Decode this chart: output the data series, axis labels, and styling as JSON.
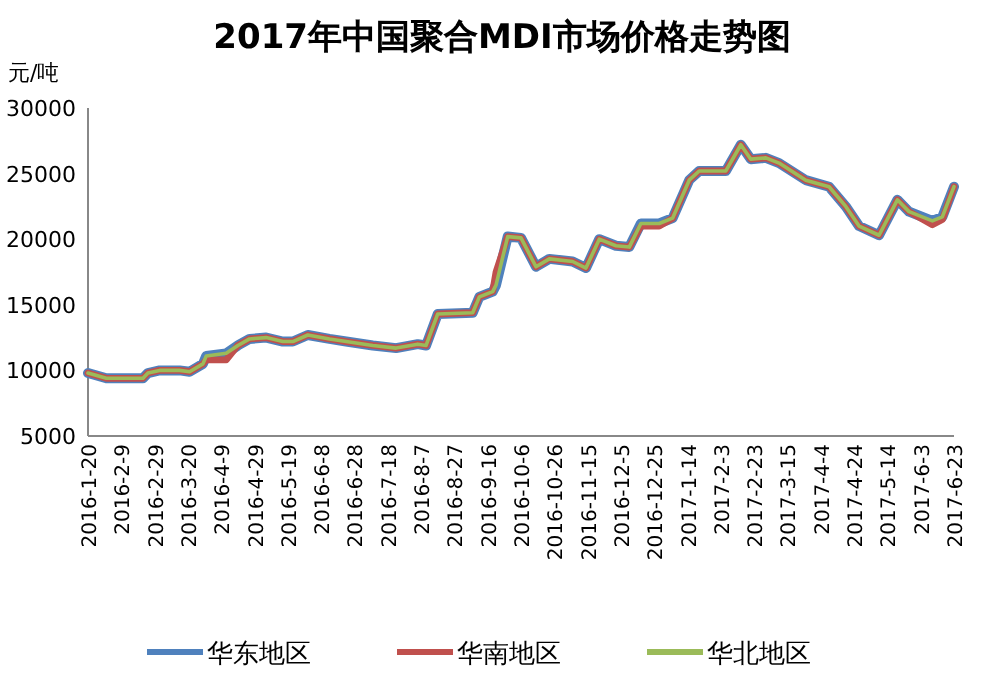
{
  "chart_data": {
    "type": "line",
    "title": "2017年中国聚合MDI市场价格走势图",
    "ylabel": "元/吨",
    "x": [
      "2016-01-20",
      "2016-01-31",
      "2016-02-22",
      "2016-02-25",
      "2016-03-03",
      "2016-03-15",
      "2016-03-21",
      "2016-03-29",
      "2016-03-31",
      "2016-04-12",
      "2016-04-19",
      "2016-04-26",
      "2016-05-06",
      "2016-05-16",
      "2016-05-22",
      "2016-05-31",
      "2016-06-13",
      "2016-06-23",
      "2016-07-09",
      "2016-07-23",
      "2016-08-05",
      "2016-08-10",
      "2016-08-17",
      "2016-09-07",
      "2016-09-11",
      "2016-09-19",
      "2016-09-21",
      "2016-09-28",
      "2016-10-06",
      "2016-10-15",
      "2016-10-23",
      "2016-11-06",
      "2016-11-14",
      "2016-11-22",
      "2016-12-02",
      "2016-12-10",
      "2016-12-17",
      "2016-12-28",
      "2017-01-05",
      "2017-01-15",
      "2017-01-21",
      "2017-02-06",
      "2017-02-15",
      "2017-02-21",
      "2017-03-02",
      "2017-03-10",
      "2017-03-26",
      "2017-04-09",
      "2017-04-19",
      "2017-04-27",
      "2017-05-09",
      "2017-05-20",
      "2017-05-27",
      "2017-06-10",
      "2017-06-16",
      "2017-06-23"
    ],
    "series": [
      {
        "name": "华东地区",
        "color": "#4f81bd",
        "values": [
          9800,
          9400,
          9400,
          9800,
          10000,
          10000,
          9900,
          10500,
          11100,
          11300,
          11900,
          12400,
          12500,
          12200,
          12200,
          12700,
          12400,
          12200,
          11900,
          11700,
          12000,
          11900,
          14300,
          14400,
          15600,
          16000,
          16500,
          20200,
          20100,
          17900,
          18500,
          18300,
          17800,
          20000,
          19500,
          19400,
          21200,
          21200,
          21600,
          24500,
          25200,
          25200,
          27200,
          26100,
          26200,
          25800,
          24500,
          24000,
          22500,
          21000,
          20300,
          23000,
          22100,
          21400,
          21700,
          24000
        ]
      },
      {
        "name": "华南地区",
        "color": "#c0504d",
        "values": [
          9800,
          9400,
          9400,
          9800,
          10000,
          10000,
          9900,
          10500,
          10800,
          10800,
          11900,
          12400,
          12500,
          12200,
          12200,
          12700,
          12400,
          12200,
          11900,
          11700,
          12000,
          11900,
          14300,
          14400,
          15600,
          16000,
          17500,
          20200,
          20100,
          17900,
          18500,
          18300,
          17800,
          20000,
          19500,
          19400,
          21000,
          21000,
          21600,
          24500,
          25200,
          25200,
          27200,
          26100,
          26200,
          25800,
          24500,
          24000,
          22500,
          21000,
          20300,
          23000,
          22100,
          21100,
          21500,
          24000
        ]
      },
      {
        "name": "华北地区",
        "color": "#9bbb59",
        "values": [
          9800,
          9400,
          9400,
          9800,
          10000,
          10000,
          9900,
          10500,
          11100,
          11300,
          11900,
          12400,
          12500,
          12200,
          12200,
          12700,
          12400,
          12200,
          11900,
          11700,
          12000,
          11900,
          14300,
          14400,
          15600,
          16000,
          16500,
          20200,
          20100,
          17900,
          18500,
          18300,
          17800,
          20000,
          19500,
          19400,
          21200,
          21200,
          21600,
          24500,
          25200,
          25200,
          27200,
          26100,
          26200,
          25800,
          24500,
          24000,
          22500,
          21000,
          20300,
          23000,
          22100,
          21400,
          21700,
          24000
        ]
      }
    ],
    "xlim": [
      "2016-01-20",
      "2017-06-23"
    ],
    "xticks": [
      {
        "value": "2016-01-20",
        "label": "2016-1-20"
      },
      {
        "value": "2016-02-09",
        "label": "2016-2-9"
      },
      {
        "value": "2016-02-29",
        "label": "2016-2-29"
      },
      {
        "value": "2016-03-20",
        "label": "2016-3-20"
      },
      {
        "value": "2016-04-09",
        "label": "2016-4-9"
      },
      {
        "value": "2016-04-29",
        "label": "2016-4-29"
      },
      {
        "value": "2016-05-19",
        "label": "2016-5-19"
      },
      {
        "value": "2016-06-08",
        "label": "2016-6-8"
      },
      {
        "value": "2016-06-28",
        "label": "2016-6-28"
      },
      {
        "value": "2016-07-18",
        "label": "2016-7-18"
      },
      {
        "value": "2016-08-07",
        "label": "2016-8-7"
      },
      {
        "value": "2016-08-27",
        "label": "2016-8-27"
      },
      {
        "value": "2016-09-16",
        "label": "2016-9-16"
      },
      {
        "value": "2016-10-06",
        "label": "2016-10-6"
      },
      {
        "value": "2016-10-26",
        "label": "2016-10-26"
      },
      {
        "value": "2016-11-15",
        "label": "2016-11-15"
      },
      {
        "value": "2016-12-05",
        "label": "2016-12-5"
      },
      {
        "value": "2016-12-25",
        "label": "2016-12-25"
      },
      {
        "value": "2017-01-14",
        "label": "2017-1-14"
      },
      {
        "value": "2017-02-03",
        "label": "2017-2-3"
      },
      {
        "value": "2017-02-23",
        "label": "2017-2-23"
      },
      {
        "value": "2017-03-15",
        "label": "2017-3-15"
      },
      {
        "value": "2017-04-04",
        "label": "2017-4-4"
      },
      {
        "value": "2017-04-24",
        "label": "2017-4-24"
      },
      {
        "value": "2017-05-14",
        "label": "2017-5-14"
      },
      {
        "value": "2017-06-03",
        "label": "2017-6-3"
      },
      {
        "value": "2017-06-23",
        "label": "2017-6-23"
      }
    ],
    "ylim": [
      5000,
      30000
    ],
    "yticks": [
      5000,
      10000,
      15000,
      20000,
      25000,
      30000
    ],
    "legend": "bottom",
    "marker": "none",
    "line_style": "solid"
  }
}
